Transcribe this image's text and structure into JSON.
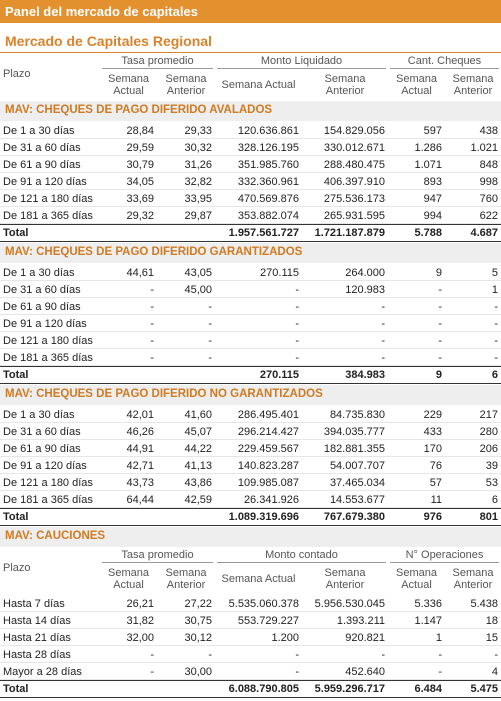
{
  "header": {
    "title": "Panel del mercado de capitales",
    "subtitle": "Mercado de Capitales Regional"
  },
  "tables": [
    {
      "head": {
        "label": "Plazo",
        "groups": [
          "Tasa promedio",
          "Monto Liquidado",
          "Cant. Cheques"
        ],
        "subs": [
          "Semana Actual",
          "Semana Anterior",
          "Semana Actual",
          "Semana Anterior",
          "Semana Actual",
          "Semana Anterior"
        ]
      },
      "sections": [
        {
          "title": "MAV: CHEQUES DE PAGO DIFERIDO AVALADOS",
          "rows": [
            [
              "De 1 a 30 días",
              "28,84",
              "29,33",
              "120.636.861",
              "154.829.056",
              "597",
              "438"
            ],
            [
              "De 31 a 60 días",
              "29,59",
              "30,32",
              "328.126.195",
              "330.012.671",
              "1.286",
              "1.021"
            ],
            [
              "De 61 a 90 días",
              "30,79",
              "31,26",
              "351.985.760",
              "288.480.475",
              "1.071",
              "848"
            ],
            [
              "De 91 a 120 días",
              "34,05",
              "32,82",
              "332.360.961",
              "406.397.910",
              "893",
              "998"
            ],
            [
              "De 121 a 180 días",
              "33,69",
              "33,95",
              "470.569.876",
              "275.536.173",
              "947",
              "760"
            ],
            [
              "De 181 a 365 días",
              "29,32",
              "29,87",
              "353.882.074",
              "265.931.595",
              "994",
              "622"
            ]
          ],
          "total": {
            "label": "Total",
            "values": [
              "1.957.561.727",
              "1.721.187.879",
              "5.788",
              "4.687"
            ]
          }
        },
        {
          "title": "MAV: CHEQUES DE PAGO DIFERIDO GARANTIZADOS",
          "rows": [
            [
              "De 1 a 30 días",
              "44,61",
              "43,05",
              "270.115",
              "264.000",
              "9",
              "5"
            ],
            [
              "De 31 a 60 días",
              "-",
              "45,00",
              "-",
              "120.983",
              "-",
              "1"
            ],
            [
              "De 61 a 90 días",
              "-",
              "-",
              "-",
              "-",
              "-",
              "-"
            ],
            [
              "De 91 a 120 días",
              "-",
              "-",
              "-",
              "-",
              "-",
              "-"
            ],
            [
              "De 121 a 180 días",
              "-",
              "-",
              "-",
              "-",
              "-",
              "-"
            ],
            [
              "De 181 a 365 días",
              "-",
              "-",
              "-",
              "-",
              "-",
              "-"
            ]
          ],
          "total": {
            "label": "Total",
            "values": [
              "270.115",
              "384.983",
              "9",
              "6"
            ]
          }
        },
        {
          "title": "MAV: CHEQUES DE PAGO DIFERIDO NO GARANTIZADOS",
          "rows": [
            [
              "De 1 a 30 días",
              "42,01",
              "41,60",
              "286.495.401",
              "84.735.830",
              "229",
              "217"
            ],
            [
              "De 31 a 60 días",
              "46,26",
              "45,07",
              "296.214.427",
              "394.035.777",
              "433",
              "280"
            ],
            [
              "De 61 a 90 días",
              "44,91",
              "44,22",
              "229.459.567",
              "182.881.355",
              "170",
              "206"
            ],
            [
              "De 91 a 120 días",
              "42,71",
              "41,13",
              "140.823.287",
              "54.007.707",
              "76",
              "39"
            ],
            [
              "De 121 a 180 días",
              "43,73",
              "43,86",
              "109.985.087",
              "37.465.034",
              "57",
              "53"
            ],
            [
              "De 181 a 365 días",
              "64,44",
              "42,59",
              "26.341.926",
              "14.553.677",
              "11",
              "6"
            ]
          ],
          "total": {
            "label": "Total",
            "values": [
              "1.089.319.696",
              "767.679.380",
              "976",
              "801"
            ]
          }
        }
      ]
    },
    {
      "title": "MAV: CAUCIONES",
      "head": {
        "label": "Plazo",
        "groups": [
          "Tasa promedio",
          "Monto contado",
          "N° Operaciones"
        ],
        "subs": [
          "Semana Actual",
          "Semana Anterior",
          "Semana Actual",
          "Semana Anterior",
          "Semana Actual",
          "Semana Anterior"
        ]
      },
      "sections": [
        {
          "rows": [
            [
              "Hasta 7 días",
              "26,21",
              "27,22",
              "5.535.060.378",
              "5.956.530.045",
              "5.336",
              "5.438"
            ],
            [
              "Hasta 14 días",
              "31,82",
              "30,75",
              "553.729.227",
              "1.393.211",
              "1.147",
              "18"
            ],
            [
              "Hasta 21 días",
              "32,00",
              "30,12",
              "1.200",
              "920.821",
              "1",
              "15"
            ],
            [
              "Hasta 28 días",
              "-",
              "-",
              "-",
              "-",
              "-",
              "-"
            ],
            [
              "Mayor a 28 días",
              "-",
              "30,00",
              "-",
              "452.640",
              "-",
              "4"
            ]
          ],
          "total": {
            "label": "Total",
            "values": [
              "6.088.790.805",
              "5.959.296.717",
              "6.484",
              "5.475"
            ]
          }
        }
      ]
    }
  ]
}
